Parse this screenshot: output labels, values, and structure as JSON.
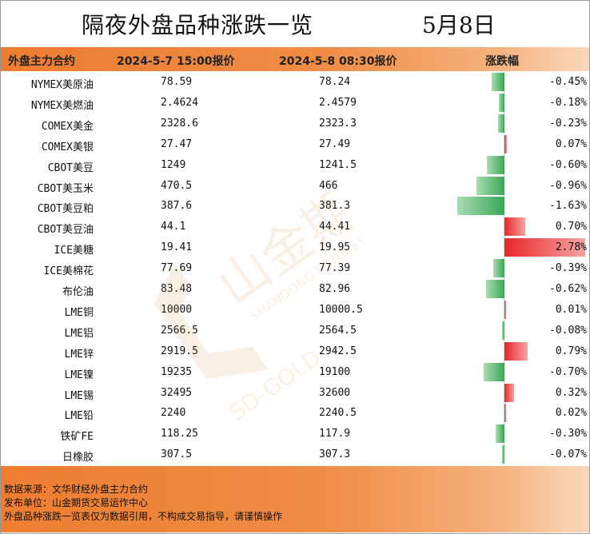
{
  "title": "隔夜外盘品种涨跌一览",
  "date_label": "5月8日",
  "columns": [
    "外盘主力合约",
    "2024-5-7 15:00报价",
    "2024-5-8 08:30报价",
    "涨跌幅"
  ],
  "rows": [
    {
      "name": "NYMEX美原油",
      "prev": "78.59",
      "curr": "78.24",
      "pct": "-0.45%",
      "value": -0.45
    },
    {
      "name": "NYMEX美燃油",
      "prev": "2.4624",
      "curr": "2.4579",
      "pct": "-0.18%",
      "value": -0.18
    },
    {
      "name": "COMEX美金",
      "prev": "2328.6",
      "curr": "2323.3",
      "pct": "-0.23%",
      "value": -0.23
    },
    {
      "name": "COMEX美银",
      "prev": "27.47",
      "curr": "27.49",
      "pct": "0.07%",
      "value": 0.07
    },
    {
      "name": "CBOT美豆",
      "prev": "1249",
      "curr": "1241.5",
      "pct": "-0.60%",
      "value": -0.6
    },
    {
      "name": "CBOT美玉米",
      "prev": "470.5",
      "curr": "466",
      "pct": "-0.96%",
      "value": -0.96
    },
    {
      "name": "CBOT美豆粕",
      "prev": "387.6",
      "curr": "381.3",
      "pct": "-1.63%",
      "value": -1.63
    },
    {
      "name": "CBOT美豆油",
      "prev": "44.1",
      "curr": "44.41",
      "pct": "0.70%",
      "value": 0.7
    },
    {
      "name": "ICE美糖",
      "prev": "19.41",
      "curr": "19.95",
      "pct": "2.78%",
      "value": 2.78
    },
    {
      "name": "ICE美棉花",
      "prev": "77.69",
      "curr": "77.39",
      "pct": "-0.39%",
      "value": -0.39
    },
    {
      "name": "布伦油",
      "prev": "83.48",
      "curr": "82.96",
      "pct": "-0.62%",
      "value": -0.62
    },
    {
      "name": "LME铜",
      "prev": "10000",
      "curr": "10000.5",
      "pct": "0.01%",
      "value": 0.01
    },
    {
      "name": "LME铝",
      "prev": "2566.5",
      "curr": "2564.5",
      "pct": "-0.08%",
      "value": -0.08
    },
    {
      "name": "LME锌",
      "prev": "2919.5",
      "curr": "2942.5",
      "pct": "0.79%",
      "value": 0.79
    },
    {
      "name": "LME镍",
      "prev": "19235",
      "curr": "19100",
      "pct": "-0.70%",
      "value": -0.7
    },
    {
      "name": "LME锡",
      "prev": "32495",
      "curr": "32600",
      "pct": "0.32%",
      "value": 0.32
    },
    {
      "name": "LME铅",
      "prev": "2240",
      "curr": "2240.5",
      "pct": "0.02%",
      "value": 0.02
    },
    {
      "name": "铁矿FE",
      "prev": "118.25",
      "curr": "117.9",
      "pct": "-0.30%",
      "value": -0.3
    },
    {
      "name": "日橡胶",
      "prev": "307.5",
      "curr": "307.3",
      "pct": "-0.07%",
      "value": -0.07
    }
  ],
  "footer": {
    "line1": "数据来源：文华财经外盘主力合约",
    "line2": "发布单位：山金期货交易运作中心",
    "line3": "外盘品种涨跌一览表仅为数据引用，不构成交易指导，请谨慎操作"
  },
  "watermark": {
    "cn": "山金期货",
    "en1": "SHANDONG FUTURES",
    "en2": "SD-GOLD"
  },
  "colors": {
    "header": "#ed7d31",
    "up": "#e8262a",
    "down": "#3aa655"
  }
}
